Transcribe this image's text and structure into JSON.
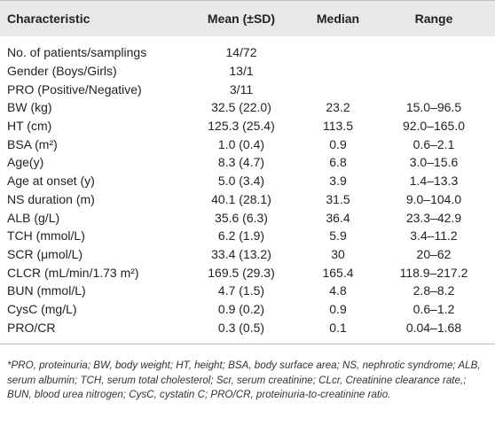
{
  "table": {
    "header": [
      "Characteristic",
      "Mean (±SD)",
      "Median",
      "Range"
    ],
    "rows": [
      [
        "No. of patients/samplings",
        "14/72"
      ],
      [
        "Gender (Boys/Girls)",
        "13/1"
      ],
      [
        "PRO (Positive/Negative)",
        "3/11"
      ],
      [
        "BW (kg)",
        "32.5 (22.0)",
        "23.2",
        "15.0–96.5"
      ],
      [
        "HT (cm)",
        "125.3 (25.4)",
        "113.5",
        "92.0–165.0"
      ],
      [
        "BSA (m²)",
        "1.0 (0.4)",
        "0.9",
        "0.6–2.1"
      ],
      [
        "Age(y)",
        "8.3 (4.7)",
        "6.8",
        "3.0–15.6"
      ],
      [
        "Age at onset (y)",
        "5.0 (3.4)",
        "3.9",
        "1.4–13.3"
      ],
      [
        "NS duration (m)",
        "40.1 (28.1)",
        "31.5",
        "9.0–104.0"
      ],
      [
        "ALB (g/L)",
        "35.6 (6.3)",
        "36.4",
        "23.3–42.9"
      ],
      [
        "TCH (mmol/L)",
        "6.2 (1.9)",
        "5.9",
        "3.4–11.2"
      ],
      [
        "SCR (μmol/L)",
        "33.4 (13.2)",
        "30",
        "20–62"
      ],
      [
        "CLCR (mL/min/1.73 m²)",
        "169.5 (29.3)",
        "165.4",
        "118.9–217.2"
      ],
      [
        "BUN (mmol/L)",
        "4.7 (1.5)",
        "4.8",
        "2.8–8.2"
      ],
      [
        "CysC (mg/L)",
        "0.9 (0.2)",
        "0.9",
        "0.6–1.2"
      ],
      [
        "PRO/CR",
        "0.3 (0.5)",
        "0.1",
        "0.04–1.68"
      ]
    ]
  },
  "footnote": "*PRO, proteinuria; BW, body weight; HT, height; BSA, body surface area; NS, nephrotic syndrome; ALB, serum albumin; TCH, serum total cholesterol; Scr, serum creatinine; CLcr, Creatinine clearance rate,; BUN, blood urea nitrogen; CysC, cystatin C; PRO/CR, proteinuria-to-creatinine ratio."
}
